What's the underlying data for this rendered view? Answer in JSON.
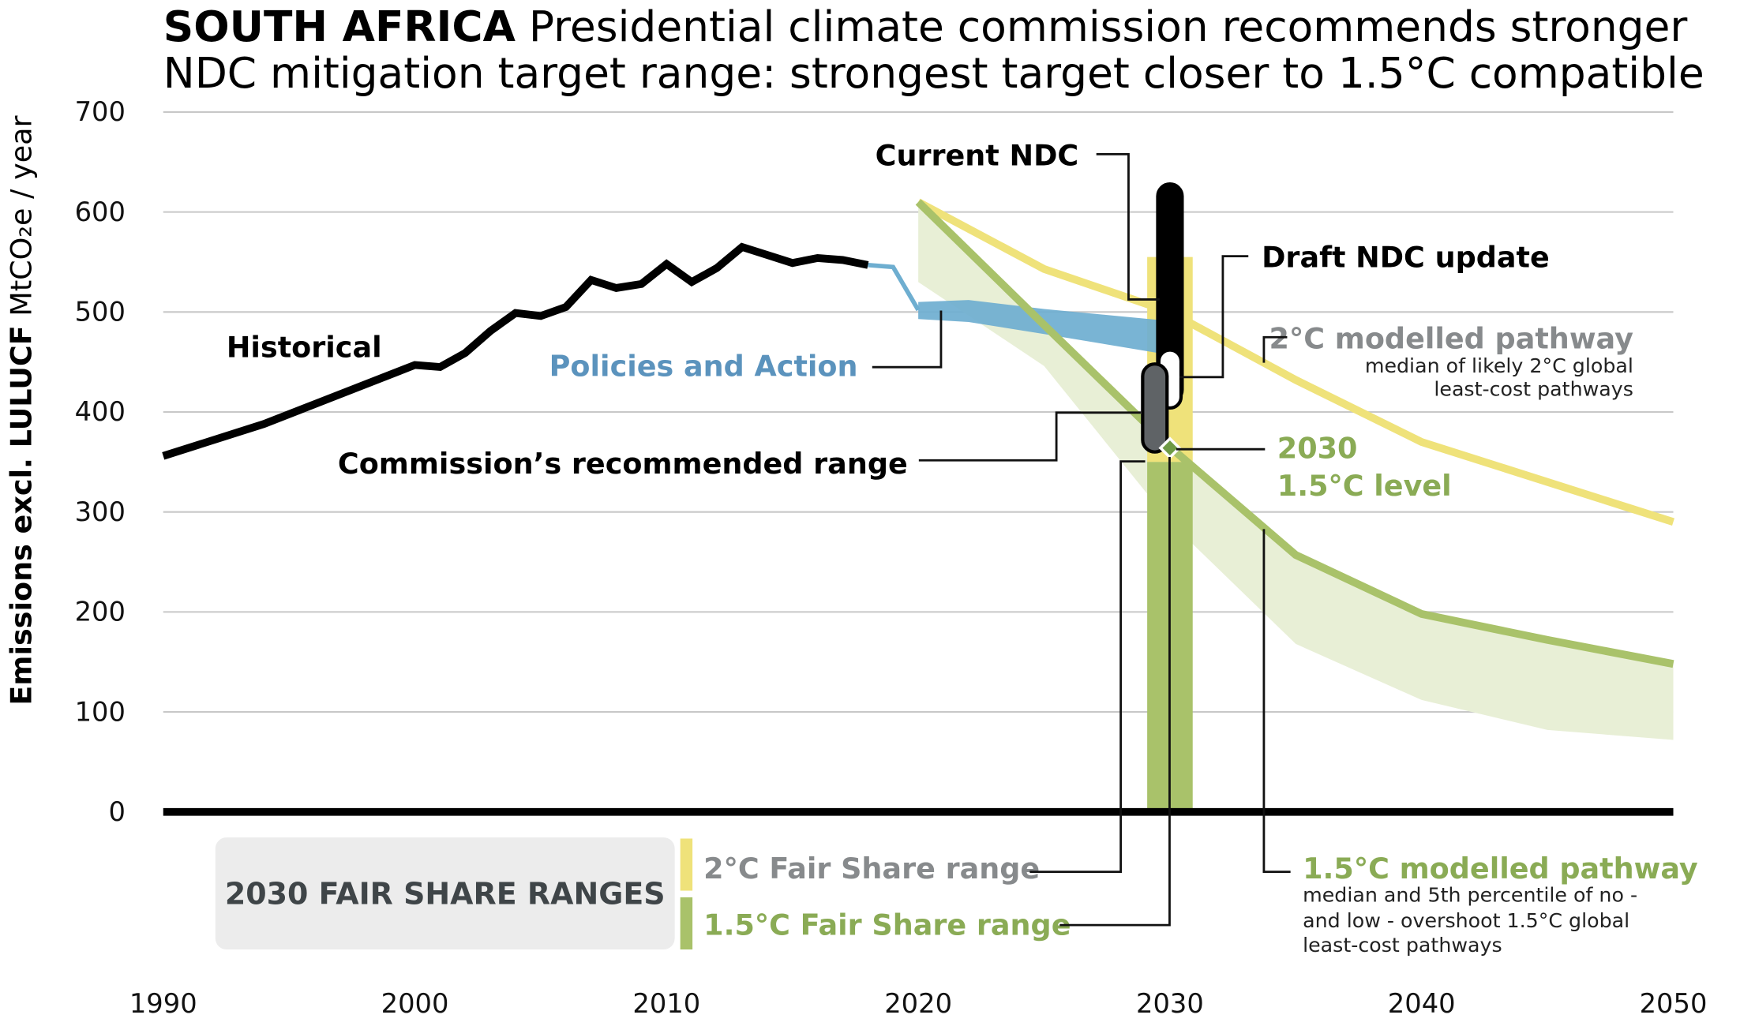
{
  "chart_data": {
    "type": "line",
    "title_bold": "SOUTH AFRICA",
    "title": "Presidential climate commission recommends stronger",
    "subtitle": "NDC mitigation target range: strongest target closer to 1.5°C compatible",
    "ylabel_bold": "Emissions excl. LULUCF",
    "ylabel": "MtCO₂e / year",
    "xlim": [
      1990,
      2050
    ],
    "ylim": [
      0,
      700
    ],
    "xticks": [
      1990,
      2000,
      2010,
      2020,
      2030,
      2040,
      2050
    ],
    "yticks": [
      0,
      100,
      200,
      300,
      400,
      500,
      600,
      700
    ],
    "grid": true,
    "colors": {
      "historical": "#000000",
      "policies": "#6eaed0",
      "policies_label": "#5b93bd",
      "pathway_2c": "#efe27a",
      "pathway_15c": "#a9c26a",
      "band_15c": "#e8efd6",
      "label_2c": "#878a8c",
      "label_15c": "#8aab55",
      "commission": "#5f6366",
      "legend_box": "#ececec",
      "legend_title": "#3f4548"
    },
    "historical": {
      "label": "Historical",
      "x": [
        1990,
        1994,
        2000,
        2001,
        2002,
        2003,
        2004,
        2005,
        2006,
        2007,
        2008,
        2009,
        2010,
        2011,
        2012,
        2013,
        2014,
        2015,
        2016,
        2017,
        2018
      ],
      "y": [
        356,
        388,
        447,
        445,
        459,
        481,
        499,
        496,
        505,
        532,
        524,
        528,
        548,
        530,
        544,
        565,
        557,
        549,
        554,
        552,
        547
      ]
    },
    "policies_and_action": {
      "label": "Policies and Action",
      "connector": {
        "x": [
          2018,
          2019,
          2020
        ],
        "y": [
          547,
          545,
          502
        ]
      },
      "x": [
        2020,
        2022,
        2025,
        2030
      ],
      "low": [
        493,
        490,
        478,
        457
      ],
      "high": [
        510,
        512,
        503,
        491
      ]
    },
    "pathway_2c": {
      "label": "2°C modelled pathway",
      "note": [
        "median of likely 2°C global",
        "least-cost pathways"
      ],
      "x": [
        2020,
        2025,
        2030,
        2035,
        2040,
        2050
      ],
      "y": [
        610,
        543,
        500,
        432,
        370,
        290
      ]
    },
    "pathway_15c": {
      "label": "1.5°C modelled pathway",
      "note": [
        "median and 5th percentile of no -",
        "and low - overshoot 1.5°C global",
        "least-cost pathways"
      ],
      "x": [
        2020,
        2025,
        2030,
        2035,
        2040,
        2045,
        2050
      ],
      "median": [
        610,
        487,
        365,
        257,
        198,
        172,
        148
      ],
      "p5": [
        530,
        446,
        290,
        168,
        112,
        82,
        72
      ]
    },
    "fair_share_2c": {
      "label": "2°C Fair Share range",
      "year": 2030,
      "range": [
        350,
        555
      ]
    },
    "fair_share_15c": {
      "label": "1.5°C Fair Share range",
      "year": 2030,
      "range": [
        0,
        350
      ]
    },
    "current_ndc": {
      "label": "Current NDC",
      "year": 2030,
      "range": [
        410,
        628
      ]
    },
    "draft_ndc_update": {
      "label": "Draft NDC update",
      "year": 2030,
      "range": [
        404,
        462
      ]
    },
    "commission_range": {
      "label": "Commission’s recommended range",
      "year": 2029.4,
      "range": [
        360,
        448
      ]
    },
    "level_15c_2030": {
      "label": [
        "2030",
        "1.5°C level"
      ],
      "year": 2030,
      "value": 364
    },
    "legend_title": "2030 FAIR SHARE RANGES"
  }
}
